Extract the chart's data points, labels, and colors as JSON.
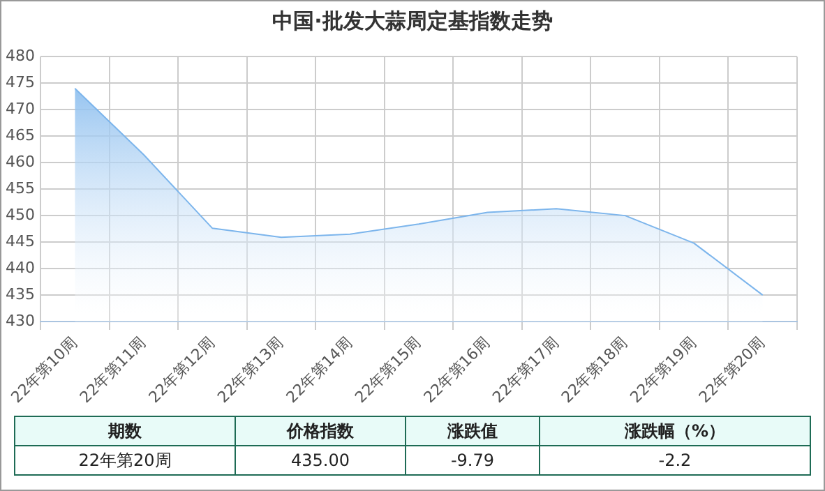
{
  "chart_data": {
    "type": "area",
    "title": "中国·批发大蒜周定基指数走势",
    "categories": [
      "22年第10周",
      "22年第11周",
      "22年第12周",
      "22年第13周",
      "22年第14周",
      "22年第15周",
      "22年第16周",
      "22年第17周",
      "22年第18周",
      "22年第19周",
      "22年第20周"
    ],
    "series": [
      {
        "color": "#7cb5ec",
        "values": [
          474,
          461.5,
          447.6,
          445.9,
          446.5,
          448.4,
          450.6,
          451.3,
          450.0,
          444.8,
          435.0
        ]
      }
    ],
    "ylim": [
      430,
      480
    ],
    "yticks": [
      430,
      435,
      440,
      445,
      450,
      455,
      460,
      465,
      470,
      475,
      480
    ],
    "grid": true,
    "legend": false,
    "marker": "none",
    "annotations": [
      "期数",
      "价格指数",
      "涨跌值",
      "涨跌幅（%）",
      "22年第20周",
      "435.00",
      "-9.79",
      "-2.2"
    ]
  }
}
